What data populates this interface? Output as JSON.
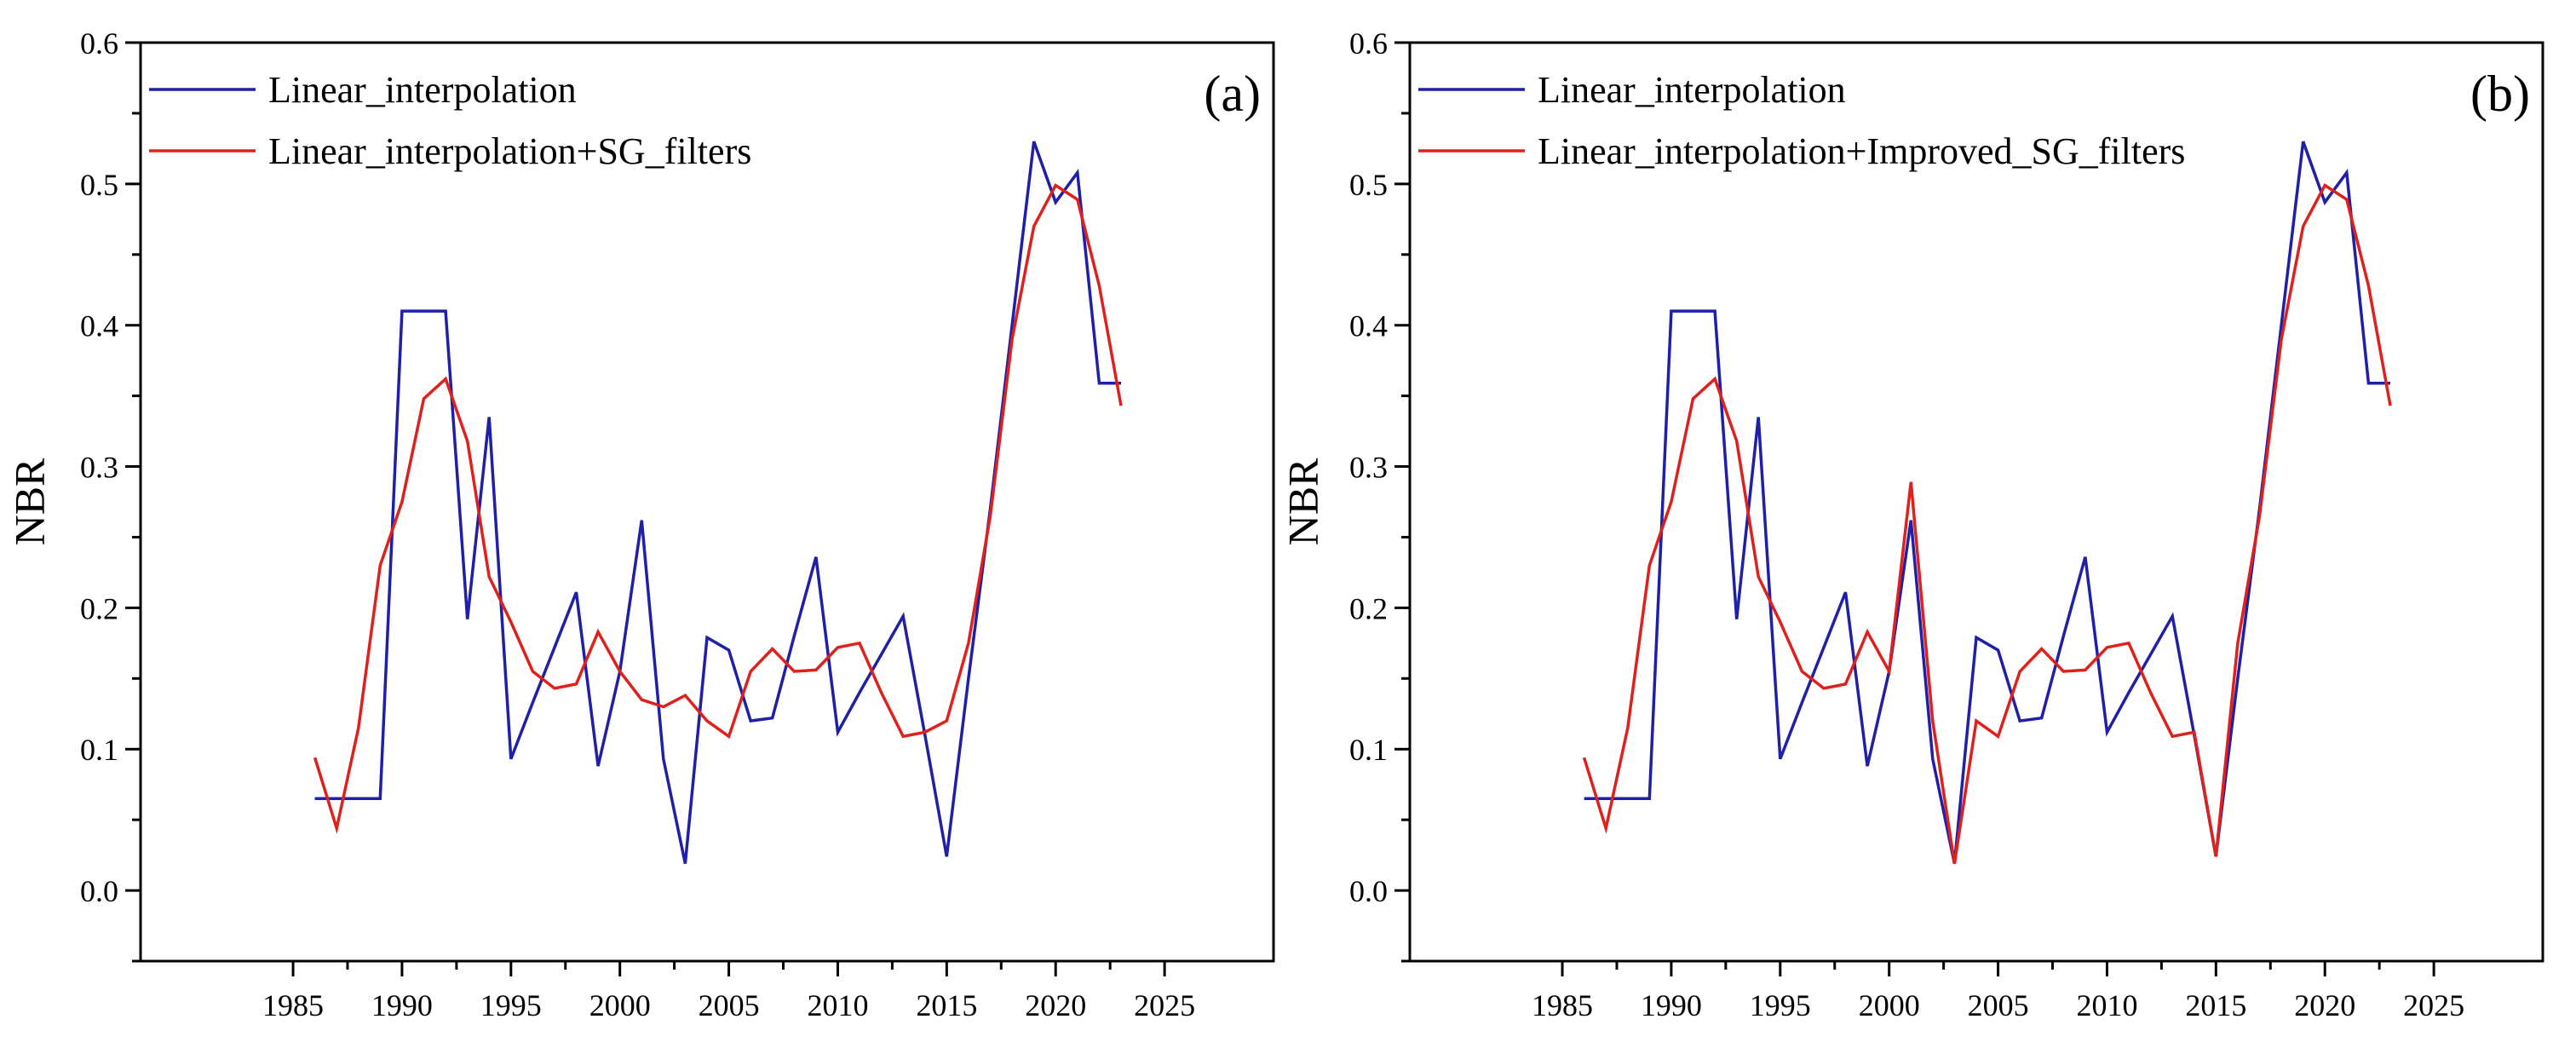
{
  "chart_data": [
    {
      "type": "line",
      "panel_label": "(a)",
      "xlabel": "",
      "ylabel": "NBR",
      "xlim": [
        1978,
        2030
      ],
      "ylim": [
        -0.05,
        0.6
      ],
      "xticks": [
        1985,
        1990,
        1995,
        2000,
        2005,
        2010,
        2015,
        2020,
        2025
      ],
      "yticks": [
        0.0,
        0.1,
        0.2,
        0.3,
        0.4,
        0.5,
        0.6
      ],
      "xtick_labels": [
        "1985",
        "1990",
        "1995",
        "2000",
        "2005",
        "2010",
        "2015",
        "2020",
        "2025"
      ],
      "ytick_labels": [
        "0.0",
        "0.1",
        "0.2",
        "0.3",
        "0.4",
        "0.5",
        "0.6"
      ],
      "legend_position": "top-left",
      "x": [
        1986,
        1987,
        1988,
        1989,
        1990,
        1991,
        1992,
        1993,
        1994,
        1995,
        1996,
        1997,
        1998,
        1999,
        2000,
        2001,
        2002,
        2003,
        2004,
        2005,
        2006,
        2007,
        2008,
        2009,
        2010,
        2011,
        2012,
        2013,
        2014,
        2015,
        2016,
        2017,
        2018,
        2019,
        2020,
        2021,
        2022,
        2023
      ],
      "series": [
        {
          "name": "Linear_interpolation",
          "color": "#1f1fa8",
          "values": [
            0.065,
            0.065,
            0.065,
            0.065,
            0.41,
            0.41,
            0.41,
            0.192,
            0.335,
            0.093,
            0.133,
            0.172,
            0.211,
            0.088,
            0.155,
            0.262,
            0.093,
            0.019,
            0.179,
            0.17,
            0.12,
            0.122,
            0.18,
            0.236,
            0.112,
            0.14,
            0.167,
            0.194,
            0.11,
            0.024,
            0.15,
            0.27,
            0.4,
            0.53,
            0.487,
            0.508,
            0.359,
            0.359
          ]
        },
        {
          "name": "Linear_interpolation+SG_filters",
          "color": "#e0201c",
          "values": [
            0.094,
            0.044,
            0.115,
            0.23,
            0.275,
            0.348,
            0.362,
            0.318,
            0.222,
            0.19,
            0.155,
            0.143,
            0.146,
            0.183,
            0.155,
            0.135,
            0.13,
            0.138,
            0.12,
            0.109,
            0.155,
            0.171,
            0.155,
            0.156,
            0.172,
            0.175,
            0.14,
            0.109,
            0.112,
            0.12,
            0.175,
            0.265,
            0.39,
            0.47,
            0.499,
            0.489,
            0.428,
            0.343
          ]
        }
      ]
    },
    {
      "type": "line",
      "panel_label": "(b)",
      "xlabel": "",
      "ylabel": "NBR",
      "xlim": [
        1978,
        2030
      ],
      "ylim": [
        -0.05,
        0.6
      ],
      "xticks": [
        1985,
        1990,
        1995,
        2000,
        2005,
        2010,
        2015,
        2020,
        2025
      ],
      "yticks": [
        0.0,
        0.1,
        0.2,
        0.3,
        0.4,
        0.5,
        0.6
      ],
      "xtick_labels": [
        "1985",
        "1990",
        "1995",
        "2000",
        "2005",
        "2010",
        "2015",
        "2020",
        "2025"
      ],
      "ytick_labels": [
        "0.0",
        "0.1",
        "0.2",
        "0.3",
        "0.4",
        "0.5",
        "0.6"
      ],
      "legend_position": "top-left",
      "x": [
        1986,
        1987,
        1988,
        1989,
        1990,
        1991,
        1992,
        1993,
        1994,
        1995,
        1996,
        1997,
        1998,
        1999,
        2000,
        2001,
        2002,
        2003,
        2004,
        2005,
        2006,
        2007,
        2008,
        2009,
        2010,
        2011,
        2012,
        2013,
        2014,
        2015,
        2016,
        2017,
        2018,
        2019,
        2020,
        2021,
        2022,
        2023
      ],
      "series": [
        {
          "name": "Linear_interpolation",
          "color": "#1f1fa8",
          "values": [
            0.065,
            0.065,
            0.065,
            0.065,
            0.41,
            0.41,
            0.41,
            0.192,
            0.335,
            0.093,
            0.133,
            0.172,
            0.211,
            0.088,
            0.155,
            0.262,
            0.093,
            0.019,
            0.179,
            0.17,
            0.12,
            0.122,
            0.18,
            0.236,
            0.112,
            0.14,
            0.167,
            0.194,
            0.11,
            0.024,
            0.15,
            0.27,
            0.4,
            0.53,
            0.487,
            0.508,
            0.359,
            0.359
          ]
        },
        {
          "name": "Linear_interpolation+Improved_SG_filters",
          "color": "#e0201c",
          "values": [
            0.094,
            0.044,
            0.115,
            0.23,
            0.275,
            0.348,
            0.362,
            0.318,
            0.222,
            0.19,
            0.155,
            0.143,
            0.146,
            0.183,
            0.155,
            0.289,
            0.12,
            0.019,
            0.12,
            0.109,
            0.155,
            0.171,
            0.155,
            0.156,
            0.172,
            0.175,
            0.14,
            0.109,
            0.112,
            0.024,
            0.175,
            0.265,
            0.39,
            0.47,
            0.499,
            0.489,
            0.428,
            0.343
          ]
        }
      ]
    }
  ]
}
